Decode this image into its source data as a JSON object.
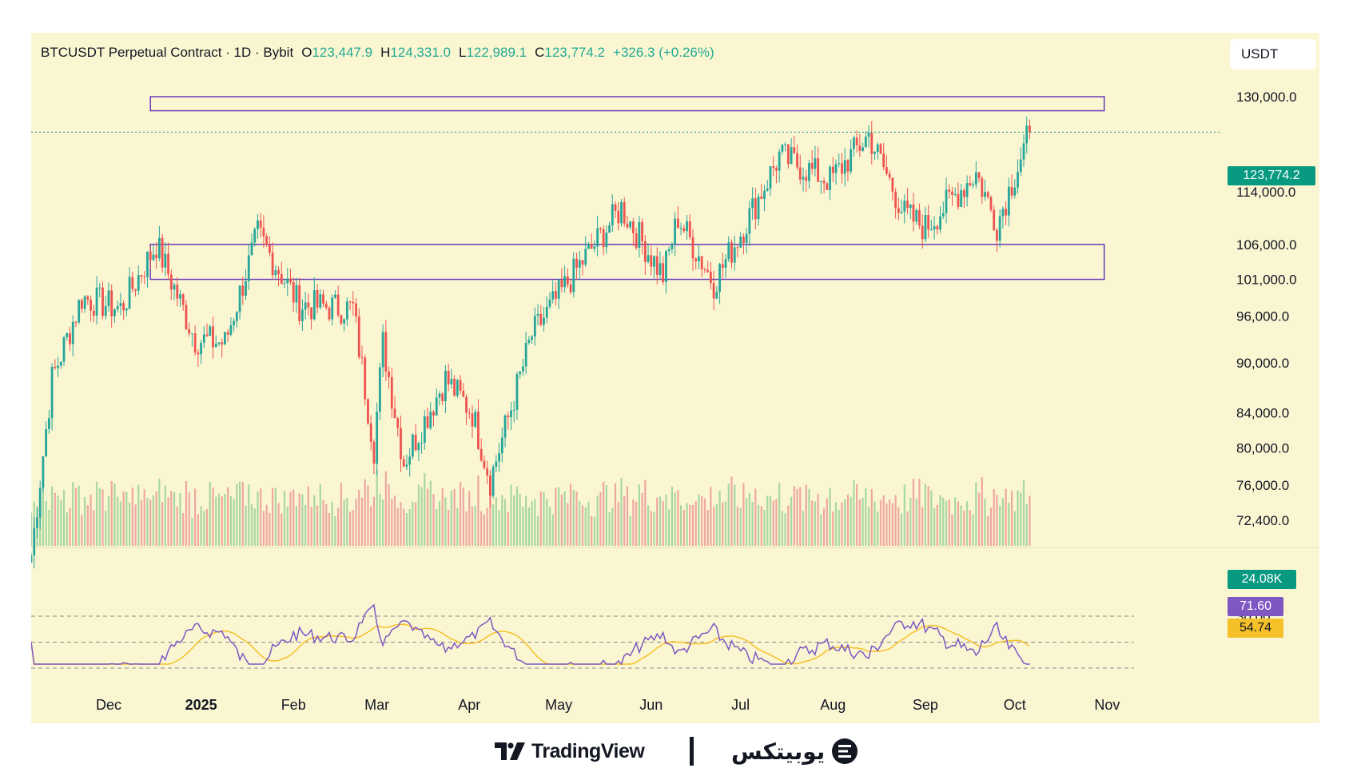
{
  "header": {
    "symbol": "BTCUSDT Perpetual Contract · 1D · Bybit",
    "open_label": "O",
    "open_value": "123,447.9",
    "high_label": "H",
    "high_value": "124,331.0",
    "low_label": "L",
    "low_value": "122,989.1",
    "close_label": "C",
    "close_value": "123,774.2",
    "change": "+326.3 (+0.26%)"
  },
  "currency_button": "USDT",
  "price_axis_labels": [
    "130,000.0",
    "114,000.0",
    "106,000.0",
    "101,000.0",
    "96,000.0",
    "90,000.0",
    "84,000.0",
    "80,000.0",
    "76,000.0",
    "72,400.0"
  ],
  "last_price_tag": "123,774.2",
  "volume_tag": "24.08K",
  "rsi_value_tag": "71.60",
  "rsi_ma_tag": "54.74",
  "rsi_axis_label": "30.00",
  "time_axis_labels": [
    "Dec",
    "2025",
    "Feb",
    "Mar",
    "Apr",
    "May",
    "Jun",
    "Jul",
    "Aug",
    "Sep",
    "Oct",
    "Nov"
  ],
  "colors": {
    "up": "#26a69a",
    "down": "#ef5350",
    "rsi": "#7e57c2",
    "rsi_ma": "#f5c028",
    "zone": "#673ab7",
    "last_price": "#089981",
    "background": "#fbf6d2"
  },
  "footer": {
    "tradingview": "TradingView",
    "brand": "یوبیتکس",
    "brand_icon": "ubitex-logo-icon",
    "tv_icon": "tradingview-logo-icon"
  },
  "chart_data": {
    "type": "candlestick",
    "interval": "1D",
    "x_range": [
      "2024-11-05",
      "2025-11-10"
    ],
    "y_scale": "log",
    "y_ticks": [
      130000,
      122000,
      114000,
      106000,
      101000,
      96000,
      90000,
      84000,
      80000,
      76000,
      72400
    ],
    "zones": [
      {
        "from_date": "2024-12-15",
        "to_date": "2025-10-31",
        "low": 127500,
        "high": 130000
      },
      {
        "from_date": "2024-12-15",
        "to_date": "2025-10-31",
        "low": 101000,
        "high": 106000
      }
    ],
    "last_price": 123774.2,
    "anchors": [
      {
        "date": "2024-11-05",
        "close": 69000
      },
      {
        "date": "2024-11-12",
        "close": 88000
      },
      {
        "date": "2024-11-22",
        "close": 98500
      },
      {
        "date": "2024-12-05",
        "close": 97000
      },
      {
        "date": "2024-12-17",
        "close": 106000
      },
      {
        "date": "2024-12-30",
        "close": 93000
      },
      {
        "date": "2025-01-09",
        "close": 92500
      },
      {
        "date": "2025-01-20",
        "close": 107500
      },
      {
        "date": "2025-02-03",
        "close": 97500
      },
      {
        "date": "2025-02-21",
        "close": 97000
      },
      {
        "date": "2025-02-28",
        "close": 80000
      },
      {
        "date": "2025-03-03",
        "close": 92500
      },
      {
        "date": "2025-03-10",
        "close": 78500
      },
      {
        "date": "2025-03-24",
        "close": 88000
      },
      {
        "date": "2025-04-02",
        "close": 84000
      },
      {
        "date": "2025-04-08",
        "close": 76500
      },
      {
        "date": "2025-04-22",
        "close": 93500
      },
      {
        "date": "2025-05-08",
        "close": 103000
      },
      {
        "date": "2025-05-22",
        "close": 111500
      },
      {
        "date": "2025-06-05",
        "close": 101500
      },
      {
        "date": "2025-06-10",
        "close": 110000
      },
      {
        "date": "2025-06-22",
        "close": 100500
      },
      {
        "date": "2025-07-02",
        "close": 108500
      },
      {
        "date": "2025-07-14",
        "close": 119800
      },
      {
        "date": "2025-07-31",
        "close": 115800
      },
      {
        "date": "2025-08-13",
        "close": 123300
      },
      {
        "date": "2025-08-25",
        "close": 110500
      },
      {
        "date": "2025-09-01",
        "close": 108500
      },
      {
        "date": "2025-09-18",
        "close": 117000
      },
      {
        "date": "2025-09-25",
        "close": 109000
      },
      {
        "date": "2025-10-06",
        "close": 123774.2
      }
    ]
  }
}
